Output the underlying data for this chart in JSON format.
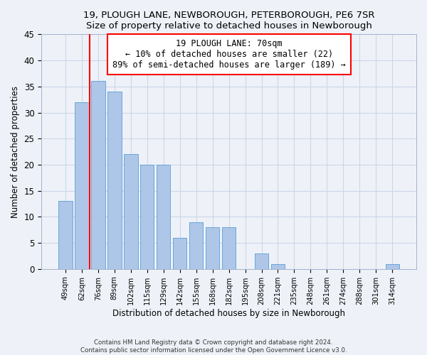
{
  "title": "19, PLOUGH LANE, NEWBOROUGH, PETERBOROUGH, PE6 7SR",
  "subtitle": "Size of property relative to detached houses in Newborough",
  "xlabel": "Distribution of detached houses by size in Newborough",
  "ylabel": "Number of detached properties",
  "bar_labels": [
    "49sqm",
    "62sqm",
    "76sqm",
    "89sqm",
    "102sqm",
    "115sqm",
    "129sqm",
    "142sqm",
    "155sqm",
    "168sqm",
    "182sqm",
    "195sqm",
    "208sqm",
    "221sqm",
    "235sqm",
    "248sqm",
    "261sqm",
    "274sqm",
    "288sqm",
    "301sqm",
    "314sqm"
  ],
  "bar_values": [
    13,
    32,
    36,
    34,
    22,
    20,
    20,
    6,
    9,
    8,
    8,
    0,
    3,
    1,
    0,
    0,
    0,
    0,
    0,
    0,
    1
  ],
  "bar_color": "#aec6e8",
  "bar_edge_color": "#5a9fd4",
  "grid_color": "#ccd6e8",
  "background_color": "#eef2f8",
  "vline_x": 1.5,
  "vline_color": "red",
  "ylim": [
    0,
    45
  ],
  "yticks": [
    0,
    5,
    10,
    15,
    20,
    25,
    30,
    35,
    40,
    45
  ],
  "annotation_title": "19 PLOUGH LANE: 70sqm",
  "annotation_line1": "← 10% of detached houses are smaller (22)",
  "annotation_line2": "89% of semi-detached houses are larger (189) →",
  "annotation_box_color": "white",
  "annotation_box_edge": "red",
  "footer_line1": "Contains HM Land Registry data © Crown copyright and database right 2024.",
  "footer_line2": "Contains public sector information licensed under the Open Government Licence v3.0."
}
